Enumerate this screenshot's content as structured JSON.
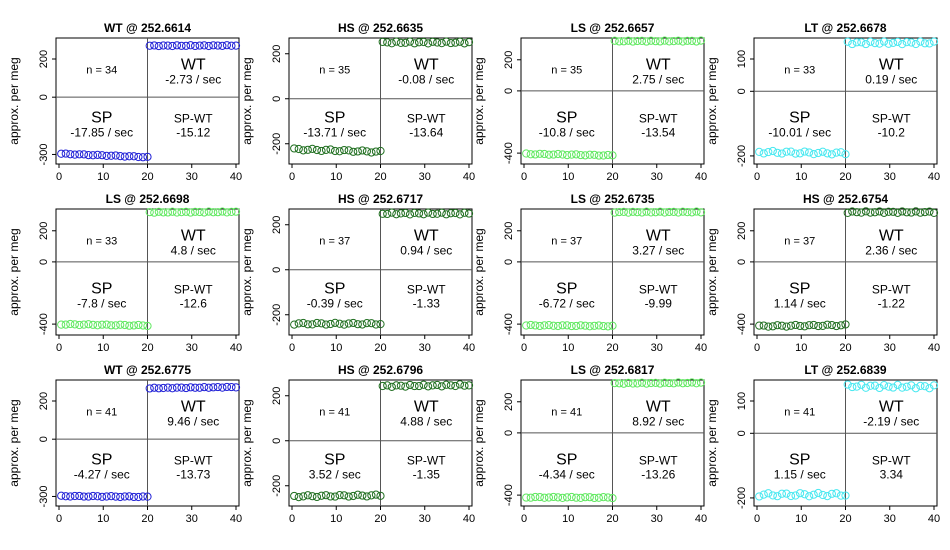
{
  "figure": {
    "x_ticks": [
      "0",
      "10",
      "20",
      "30",
      "40"
    ],
    "ylabel": "approx. per meg",
    "segment_labels": {
      "wt": "WT",
      "sp": "SP",
      "diff": "SP-WT"
    },
    "colors": {
      "WT": "#1f1fd6",
      "HS": "#1f6e1f",
      "LS": "#5ee85e",
      "LT": "#46e8f0"
    }
  },
  "chart_data": [
    {
      "type": "scatter",
      "title": "WT @ 252.6614",
      "gas": "WT",
      "n": "n = 34",
      "wt_rate": "-2.73 / sec",
      "sp_rate": "-17.85 / sec",
      "diff": "-15.12",
      "y_ticks": [
        "-300",
        "0",
        "200"
      ],
      "y_tick_values": [
        -300,
        0,
        200
      ],
      "ylim": [
        -350,
        310
      ],
      "wt_level": 270,
      "sp_level": -305,
      "sp_slope": -0.9,
      "wt_slope": 0.05,
      "noise": 2
    },
    {
      "type": "scatter",
      "title": "HS @ 252.6635",
      "gas": "HS",
      "n": "n = 35",
      "wt_rate": "-0.08 / sec",
      "sp_rate": "-13.71 / sec",
      "diff": "-13.64",
      "y_ticks": [
        "-200",
        "0",
        "200"
      ],
      "y_tick_values": [
        -200,
        0,
        200
      ],
      "ylim": [
        -290,
        270
      ],
      "wt_level": 250,
      "sp_level": -230,
      "sp_slope": -0.6,
      "wt_slope": 0.0,
      "noise": 4
    },
    {
      "type": "scatter",
      "title": "LS @ 252.6657",
      "gas": "LS",
      "n": "n = 35",
      "wt_rate": "2.75 / sec",
      "sp_rate": "-10.8 / sec",
      "diff": "-13.54",
      "y_ticks": [
        "-400",
        "0",
        "200"
      ],
      "y_tick_values": [
        -400,
        0,
        200
      ],
      "ylim": [
        -470,
        340
      ],
      "wt_level": 320,
      "sp_level": -410,
      "sp_slope": -0.5,
      "wt_slope": 0.05,
      "noise": 3
    },
    {
      "type": "scatter",
      "title": "LT @ 252.6678",
      "gas": "LT",
      "n": "n = 33",
      "wt_rate": "0.19 / sec",
      "sp_rate": "-10.01 / sec",
      "diff": "-10.2",
      "y_ticks": [
        "-200",
        "0",
        "100"
      ],
      "y_tick_values": [
        -200,
        0,
        100
      ],
      "ylim": [
        -225,
        165
      ],
      "wt_level": 150,
      "sp_level": -190,
      "sp_slope": -0.2,
      "wt_slope": 0.0,
      "noise": 4
    },
    {
      "type": "scatter",
      "title": "LS @ 252.6698",
      "gas": "LS",
      "n": "n = 33",
      "wt_rate": "4.8 / sec",
      "sp_rate": "-7.8 / sec",
      "diff": "-12.6",
      "y_ticks": [
        "-400",
        "0",
        "200"
      ],
      "y_tick_values": [
        -400,
        0,
        200
      ],
      "ylim": [
        -470,
        340
      ],
      "wt_level": 320,
      "sp_level": -405,
      "sp_slope": -0.4,
      "wt_slope": 0.1,
      "noise": 3
    },
    {
      "type": "scatter",
      "title": "HS @ 252.6717",
      "gas": "HS",
      "n": "n = 37",
      "wt_rate": "0.94 / sec",
      "sp_rate": "-0.39 / sec",
      "diff": "-1.33",
      "y_ticks": [
        "-200",
        "0",
        "200"
      ],
      "y_tick_values": [
        -200,
        0,
        200
      ],
      "ylim": [
        -290,
        270
      ],
      "wt_level": 250,
      "sp_level": -240,
      "sp_slope": 0.0,
      "wt_slope": 0.0,
      "noise": 4
    },
    {
      "type": "scatter",
      "title": "LS @ 252.6735",
      "gas": "LS",
      "n": "n = 37",
      "wt_rate": "3.27 / sec",
      "sp_rate": "-6.72 / sec",
      "diff": "-9.99",
      "y_ticks": [
        "-400",
        "0",
        "200"
      ],
      "y_tick_values": [
        -400,
        0,
        200
      ],
      "ylim": [
        -470,
        340
      ],
      "wt_level": 320,
      "sp_level": -410,
      "sp_slope": -0.2,
      "wt_slope": 0.05,
      "noise": 3
    },
    {
      "type": "scatter",
      "title": "HS @ 252.6754",
      "gas": "HS",
      "n": "n = 37",
      "wt_rate": "2.36 / sec",
      "sp_rate": "1.14 / sec",
      "diff": "-1.22",
      "y_ticks": [
        "-400",
        "0",
        "200"
      ],
      "y_tick_values": [
        -400,
        0,
        200
      ],
      "ylim": [
        -470,
        340
      ],
      "wt_level": 320,
      "sp_level": -410,
      "sp_slope": 0.3,
      "wt_slope": 0.0,
      "noise": 5
    },
    {
      "type": "scatter",
      "title": "WT @ 252.6775",
      "gas": "WT",
      "n": "n = 41",
      "wt_rate": "9.46 / sec",
      "sp_rate": "-4.27 / sec",
      "diff": "-13.73",
      "y_ticks": [
        "-300",
        "0",
        "200"
      ],
      "y_tick_values": [
        -300,
        0,
        200
      ],
      "ylim": [
        -350,
        310
      ],
      "wt_level": 270,
      "sp_level": -300,
      "sp_slope": -0.2,
      "wt_slope": 0.3,
      "noise": 2
    },
    {
      "type": "scatter",
      "title": "HS @ 252.6796",
      "gas": "HS",
      "n": "n = 41",
      "wt_rate": "4.88 / sec",
      "sp_rate": "3.52 / sec",
      "diff": "-1.35",
      "y_ticks": [
        "-200",
        "0",
        "200"
      ],
      "y_tick_values": [
        -200,
        0,
        200
      ],
      "ylim": [
        -290,
        270
      ],
      "wt_level": 245,
      "sp_level": -245,
      "sp_slope": 0.2,
      "wt_slope": 0.2,
      "noise": 4
    },
    {
      "type": "scatter",
      "title": "LS @ 252.6817",
      "gas": "LS",
      "n": "n = 41",
      "wt_rate": "8.92 / sec",
      "sp_rate": "-4.34 / sec",
      "diff": "-13.26",
      "y_ticks": [
        "-400",
        "0",
        "200"
      ],
      "y_tick_values": [
        -400,
        0,
        200
      ],
      "ylim": [
        -470,
        340
      ],
      "wt_level": 320,
      "sp_level": -415,
      "sp_slope": -0.1,
      "wt_slope": 0.2,
      "noise": 3
    },
    {
      "type": "scatter",
      "title": "LT @ 252.6839",
      "gas": "LT",
      "n": "n = 41",
      "wt_rate": "-2.19 / sec",
      "sp_rate": "1.15 / sec",
      "diff": "3.34",
      "y_ticks": [
        "-200",
        "0",
        "100"
      ],
      "y_tick_values": [
        -200,
        0,
        100
      ],
      "ylim": [
        -225,
        165
      ],
      "wt_level": 145,
      "sp_level": -190,
      "sp_slope": 0.05,
      "wt_slope": -0.1,
      "noise": 5
    }
  ]
}
